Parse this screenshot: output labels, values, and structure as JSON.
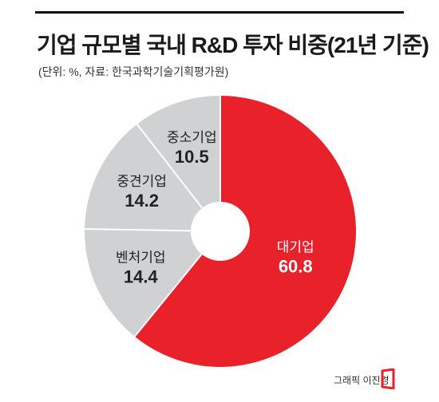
{
  "title": "기업 규모별 국내 R&D 투자 비중(21년 기준)",
  "subtitle": "(단위: %, 자료: 한국과학기술기획평가원)",
  "credit": "그래픽 이진경",
  "colors": {
    "accent": "#e8212b",
    "gray": "#d0d1d3",
    "separator": "#ffffff",
    "label_on_red": "#ffffff",
    "label_on_gray": "#222222"
  },
  "chart_data": {
    "type": "pie",
    "donut": true,
    "title": "기업 규모별 국내 R&D 투자 비중(21년 기준)",
    "unit": "%",
    "legend": "none",
    "slices": [
      {
        "label": "대기업",
        "value": 60.8,
        "color": "#e8212b",
        "text": "60.8"
      },
      {
        "label": "벤처기업",
        "value": 14.4,
        "color": "#d0d1d3",
        "text": "14.4"
      },
      {
        "label": "중견기업",
        "value": 14.2,
        "color": "#d0d1d3",
        "text": "14.2"
      },
      {
        "label": "중소기업",
        "value": 10.5,
        "color": "#d0d1d3",
        "text": "10.5"
      }
    ]
  }
}
